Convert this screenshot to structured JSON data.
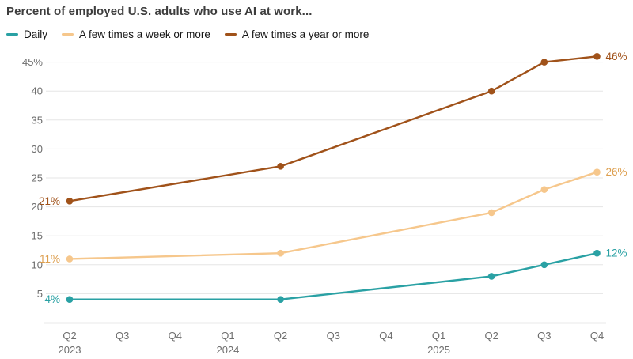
{
  "title": "Percent of employed U.S. adults who use AI at work...",
  "legend": [
    {
      "label": "Daily",
      "color": "#2aa1a4"
    },
    {
      "label": "A few times a week or more",
      "color": "#f6c78c"
    },
    {
      "label": "A few times a year or more",
      "color": "#a0521a"
    }
  ],
  "chart_data": {
    "type": "line",
    "title": "Percent of employed U.S. adults who use AI at work...",
    "x_categories": [
      "Q2",
      "Q3",
      "Q4",
      "Q1",
      "Q2",
      "Q3",
      "Q4",
      "Q1",
      "Q2",
      "Q3",
      "Q4"
    ],
    "year_labels": [
      {
        "index": 0,
        "label": "2023"
      },
      {
        "index": 3,
        "label": "2024"
      },
      {
        "index": 7,
        "label": "2025"
      }
    ],
    "y_ticks": [
      5,
      10,
      15,
      20,
      25,
      30,
      35,
      40,
      45
    ],
    "y_tick_labels": [
      "5",
      "10",
      "15",
      "20",
      "25",
      "30",
      "35",
      "40",
      "45%"
    ],
    "ylim": [
      0,
      47
    ],
    "grid": "horizontal",
    "legend_position": "top-left",
    "series": [
      {
        "name": "A few times a year or more",
        "color": "#a0521a",
        "label_color": "#a0521a",
        "points": [
          {
            "x": 0,
            "y": 21
          },
          {
            "x": 4,
            "y": 27
          },
          {
            "x": 8,
            "y": 40
          },
          {
            "x": 9,
            "y": 45
          },
          {
            "x": 10,
            "y": 46
          }
        ],
        "start_label": "21%",
        "end_label": "46%"
      },
      {
        "name": "A few times a week or more",
        "color": "#f6c78c",
        "label_color": "#dd9f4f",
        "points": [
          {
            "x": 0,
            "y": 11
          },
          {
            "x": 4,
            "y": 12
          },
          {
            "x": 8,
            "y": 19
          },
          {
            "x": 9,
            "y": 23
          },
          {
            "x": 10,
            "y": 26
          }
        ],
        "start_label": "11%",
        "end_label": "26%"
      },
      {
        "name": "Daily",
        "color": "#2aa1a4",
        "label_color": "#2aa1a4",
        "points": [
          {
            "x": 0,
            "y": 4
          },
          {
            "x": 4,
            "y": 4
          },
          {
            "x": 8,
            "y": 8
          },
          {
            "x": 9,
            "y": 10
          },
          {
            "x": 10,
            "y": 12
          }
        ],
        "start_label": "4%",
        "end_label": "12%"
      }
    ]
  }
}
